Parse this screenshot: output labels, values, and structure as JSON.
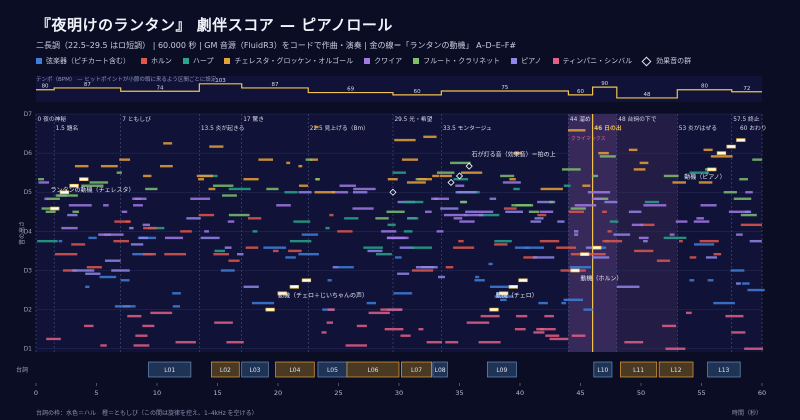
{
  "title": "『夜明けのランタン』 劇伴スコア — ピアノロール",
  "subtitle": "二長調（22.5–29.5 はロ短調） | 60.000 秒 | GM 音源（FluidR3）をコードで作曲・演奏 | 金の線＝「ランタンの動機」 A–D–E–F#",
  "legend": [
    {
      "label": "弦楽器（ピチカート含む）",
      "color": "#3f7fd9",
      "kind": "square"
    },
    {
      "label": "ホルン",
      "color": "#e0574d",
      "kind": "square"
    },
    {
      "label": "ハープ",
      "color": "#2aa58b",
      "kind": "square"
    },
    {
      "label": "チェレスタ・グロッケン・オルゴール",
      "color": "#e8a03a",
      "kind": "square"
    },
    {
      "label": "クワイア",
      "color": "#a27ae6",
      "kind": "square"
    },
    {
      "label": "フルート・クラリネット",
      "color": "#7ec06e",
      "kind": "square"
    },
    {
      "label": "ピアノ",
      "color": "#8f86e8",
      "kind": "square"
    },
    {
      "label": "ティンパニ・シンバル",
      "color": "#e45f86",
      "kind": "square"
    },
    {
      "label": "効果音の群",
      "color": "#ffffff",
      "kind": "diamond"
    }
  ],
  "colors": {
    "background": "#0b0d24",
    "panel": "#101337",
    "gold": "#f0c24f",
    "highlight": "#5a3c7a",
    "grid": "#2a2f5a"
  },
  "chart_data": {
    "type": "piano-roll",
    "tempo_note": "テンポ（BPM） — ヒットポイントが小節の頭に来るよう区間ごとに設定",
    "tempo": [
      {
        "start": 0,
        "end": 1.5,
        "bpm": 80
      },
      {
        "start": 1.5,
        "end": 7,
        "bpm": 87
      },
      {
        "start": 7,
        "end": 13.5,
        "bpm": 74
      },
      {
        "start": 13.5,
        "end": 17,
        "bpm": 103
      },
      {
        "start": 17,
        "end": 22.5,
        "bpm": 87
      },
      {
        "start": 22.5,
        "end": 29.5,
        "bpm": 69
      },
      {
        "start": 29.5,
        "end": 33.5,
        "bpm": 60
      },
      {
        "start": 33.5,
        "end": 44,
        "bpm": 75
      },
      {
        "start": 44,
        "end": 46,
        "bpm": 60
      },
      {
        "start": 46,
        "end": 48,
        "bpm": 90
      },
      {
        "start": 48,
        "end": 53,
        "bpm": 48
      },
      {
        "start": 53,
        "end": 57.5,
        "bpm": 80
      },
      {
        "start": 57.5,
        "end": 60,
        "bpm": 72
      }
    ],
    "sections": [
      {
        "t": 0,
        "label": "0 夜の神秘"
      },
      {
        "t": 1.5,
        "label": "1.5 題名"
      },
      {
        "t": 7,
        "label": "7 ともしび"
      },
      {
        "t": 13.5,
        "label": "13.5 炎が起きる"
      },
      {
        "t": 17,
        "label": "17 驚き"
      },
      {
        "t": 22.5,
        "label": "22.5 見上げる（Bm）"
      },
      {
        "t": 29.5,
        "label": "29.5 光・希望"
      },
      {
        "t": 33.5,
        "label": "33.5 モンタージュ"
      },
      {
        "t": 44,
        "label": "44 溜め"
      },
      {
        "t": 46,
        "label": "46 日の出"
      },
      {
        "t": 48,
        "label": "48 台詞の下で"
      },
      {
        "t": 53,
        "label": "53 炎がはぜる"
      },
      {
        "t": 57.5,
        "label": "57.5 終止"
      },
      {
        "t": 60,
        "label": "60 おわり"
      }
    ],
    "hit_label": "クライマックス",
    "y_axis_label": "音の高さ",
    "y_ticks": [
      "D1",
      "D2",
      "D3",
      "D4",
      "D5",
      "D6",
      "D7"
    ],
    "x_axis_label": "時間（秒）",
    "x_ticks": [
      0,
      5,
      10,
      15,
      20,
      25,
      30,
      35,
      40,
      45,
      50,
      55,
      60
    ],
    "x_range": [
      0,
      60
    ],
    "dialogue_row_label": "台詞",
    "dialogue": [
      {
        "id": "L01",
        "start": 9.3,
        "end": 12.8
      },
      {
        "id": "L02",
        "start": 14.5,
        "end": 16.8
      },
      {
        "id": "L03",
        "start": 17.0,
        "end": 19.2
      },
      {
        "id": "L04",
        "start": 19.8,
        "end": 23.0
      },
      {
        "id": "L05",
        "start": 23.3,
        "end": 25.7
      },
      {
        "id": "L06",
        "start": 25.7,
        "end": 30.0
      },
      {
        "id": "L07",
        "start": 30.2,
        "end": 32.7
      },
      {
        "id": "L08",
        "start": 32.8,
        "end": 34.0
      },
      {
        "id": "L09",
        "start": 37.3,
        "end": 39.7
      },
      {
        "id": "L10",
        "start": 46.1,
        "end": 47.6
      },
      {
        "id": "L11",
        "start": 48.3,
        "end": 51.3
      },
      {
        "id": "L12",
        "start": 51.5,
        "end": 54.3
      },
      {
        "id": "L13",
        "start": 55.5,
        "end": 58.2
      }
    ],
    "annotations": [
      {
        "t": 1.2,
        "note": "D5",
        "text": "ランタンの動機（チェレスタ）"
      },
      {
        "t": 36.0,
        "note": "C#6",
        "text": "石が灯る音（効果音）＝拍の上"
      },
      {
        "t": 20.0,
        "note": "D2",
        "text": "動機（チェロ＋じいちゃんの声）"
      },
      {
        "t": 38.0,
        "note": "D2",
        "text": "動機（チェロ）"
      },
      {
        "t": 45.0,
        "note": "B2",
        "text": "動機（ホルン）"
      },
      {
        "t": 57.0,
        "note": "F#5",
        "text": "動機（ピアノ）"
      }
    ],
    "grid": true
  },
  "footer": {
    "left": "台詞の枠：水色＝ハル　橙＝ともしび（この間は旋律を控え、1–4kHz を空ける）",
    "right": "時間（秒）"
  }
}
